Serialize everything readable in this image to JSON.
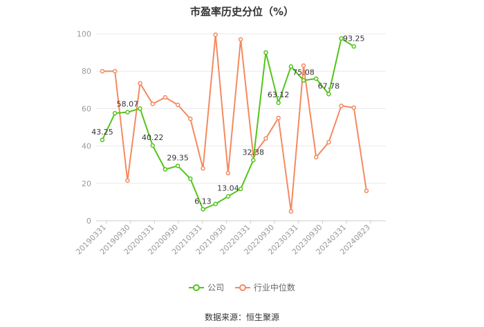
{
  "title": "市盈率历史分位（%）",
  "source": "数据来源：恒生聚源",
  "legend": [
    {
      "label": "公司",
      "color": "#52c41a"
    },
    {
      "label": "行业中位数",
      "color": "#f4895f"
    }
  ],
  "chart_data": {
    "type": "line",
    "ylim": [
      0,
      100
    ],
    "yticks": [
      0,
      20,
      40,
      60,
      80,
      100
    ],
    "xtick_labels": [
      "20190331",
      "20190930",
      "20200331",
      "20200930",
      "20210331",
      "20210930",
      "20220331",
      "20220930",
      "20230331",
      "20230930",
      "20240331",
      "20240823"
    ],
    "grid": true,
    "legend_position": "bottom",
    "series": [
      {
        "name": "公司",
        "color": "#52c41a",
        "values": [
          43.25,
          57.5,
          58.07,
          60.0,
          40.22,
          27.5,
          29.35,
          22.5,
          6.13,
          9.0,
          13.04,
          17.0,
          32.38,
          90.0,
          63.12,
          82.5,
          75.08,
          76.0,
          67.78,
          97.5,
          93.25,
          null
        ],
        "labels": {
          "0": "43.25",
          "2": "58.07",
          "4": "40.22",
          "6": "29.35",
          "8": "6.13",
          "10": "13.04",
          "12": "32.38",
          "14": "63.12",
          "16": "75.08",
          "18": "67.78",
          "20": "93.25"
        }
      },
      {
        "name": "行业中位数",
        "color": "#f4895f",
        "values": [
          80.0,
          80.0,
          21.5,
          73.5,
          62.5,
          66.0,
          62.0,
          54.5,
          28.0,
          99.5,
          25.5,
          97.0,
          35.0,
          44.0,
          55.0,
          5.0,
          83.0,
          34.0,
          42.0,
          61.5,
          60.5,
          16.0
        ]
      }
    ]
  }
}
